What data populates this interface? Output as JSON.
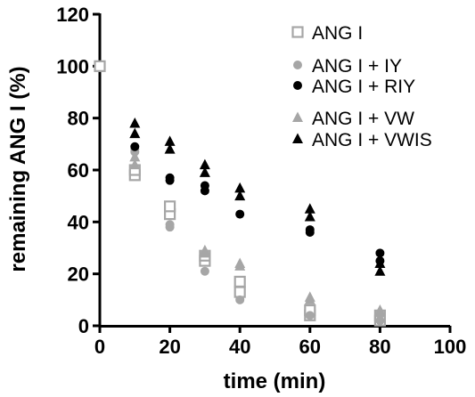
{
  "chart_data": {
    "type": "scatter",
    "xlabel": "time (min)",
    "ylabel": "remaining ANG I (%)",
    "xlim": [
      0,
      100
    ],
    "ylim": [
      0,
      120
    ],
    "x_ticks": [
      "0",
      "20",
      "40",
      "60",
      "80",
      "100"
    ],
    "y_ticks": [
      "0",
      "20",
      "40",
      "60",
      "80",
      "100",
      "120"
    ],
    "grid": false,
    "legend_position": "top-right",
    "series": [
      {
        "name": "ANG I",
        "marker": "open-square",
        "color": "#a6a6a6",
        "points": [
          [
            0,
            100
          ],
          [
            10,
            58
          ],
          [
            10,
            60
          ],
          [
            20,
            43
          ],
          [
            20,
            46
          ],
          [
            30,
            25
          ],
          [
            30,
            27
          ],
          [
            40,
            13
          ],
          [
            40,
            17
          ],
          [
            60,
            4
          ],
          [
            60,
            6
          ],
          [
            80,
            2
          ],
          [
            80,
            4
          ]
        ]
      },
      {
        "name": "ANG I + IY",
        "marker": "filled-circle",
        "color": "#a6a6a6",
        "points": [
          [
            10,
            67
          ],
          [
            10,
            68
          ],
          [
            20,
            38
          ],
          [
            20,
            39
          ],
          [
            30,
            21
          ],
          [
            40,
            10
          ],
          [
            60,
            4
          ],
          [
            80,
            2
          ]
        ]
      },
      {
        "name": "ANG I + RIY",
        "marker": "filled-circle",
        "color": "#000000",
        "points": [
          [
            10,
            69
          ],
          [
            20,
            56
          ],
          [
            20,
            57
          ],
          [
            30,
            52
          ],
          [
            30,
            54
          ],
          [
            40,
            43
          ],
          [
            60,
            36
          ],
          [
            60,
            37
          ],
          [
            80,
            25
          ],
          [
            80,
            28
          ]
        ]
      },
      {
        "name": "ANG I + VW",
        "marker": "filled-triangle",
        "color": "#a6a6a6",
        "points": [
          [
            10,
            62
          ],
          [
            10,
            65
          ],
          [
            30,
            28
          ],
          [
            30,
            29
          ],
          [
            40,
            23
          ],
          [
            40,
            24
          ],
          [
            60,
            10
          ],
          [
            60,
            11
          ],
          [
            80,
            5
          ],
          [
            80,
            6
          ]
        ]
      },
      {
        "name": "ANG I + VWIS",
        "marker": "filled-triangle",
        "color": "#000000",
        "points": [
          [
            10,
            74
          ],
          [
            10,
            78
          ],
          [
            20,
            68
          ],
          [
            20,
            71
          ],
          [
            30,
            59
          ],
          [
            30,
            62
          ],
          [
            40,
            50
          ],
          [
            40,
            53
          ],
          [
            60,
            42
          ],
          [
            60,
            45
          ],
          [
            80,
            21
          ],
          [
            80,
            24
          ]
        ]
      }
    ]
  }
}
